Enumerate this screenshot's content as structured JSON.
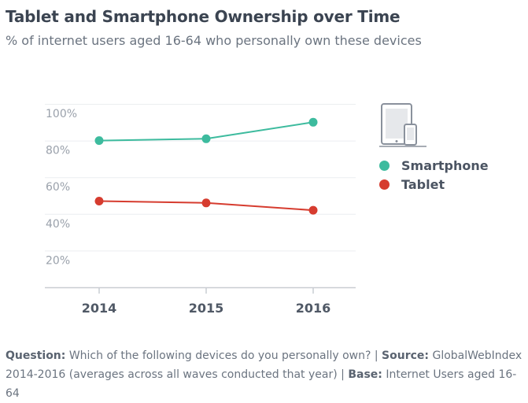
{
  "title": "Tablet and Smartphone Ownership over Time",
  "subtitle": "% of internet users aged 16-64 who personally own these devices",
  "legend": {
    "icon": "tablet-smartphone-icon",
    "items": [
      {
        "label": "Smartphone",
        "color": "#3dbb9e"
      },
      {
        "label": "Tablet",
        "color": "#d63c2f"
      }
    ]
  },
  "footnote": {
    "question_label": "Question:",
    "question_text": "Which of the following devices do you personally own?",
    "separator": "|",
    "source_label": "Source:",
    "source_text": "GlobalWebIndex 2014-2016 (averages across all waves conducted that year)",
    "base_label": "Base:",
    "base_text": "Internet Users aged 16-64"
  },
  "chart_data": {
    "type": "line",
    "title": "Tablet and Smartphone Ownership over Time",
    "subtitle": "% of internet users aged 16-64 who personally own these devices",
    "categories": [
      "2014",
      "2015",
      "2016"
    ],
    "series": [
      {
        "name": "Smartphone",
        "color": "#3dbb9e",
        "values": [
          80,
          81,
          90
        ]
      },
      {
        "name": "Tablet",
        "color": "#d63c2f",
        "values": [
          47,
          46,
          42
        ]
      }
    ],
    "yticks": [
      "20%",
      "40%",
      "60%",
      "80%",
      "100%"
    ],
    "ylim": [
      0,
      100
    ],
    "grid": true,
    "legend_position": "right"
  }
}
